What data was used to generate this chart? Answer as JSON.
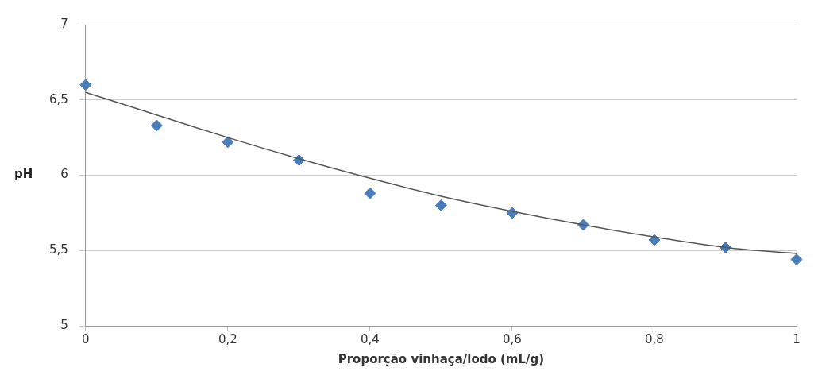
{
  "chart_data": {
    "type": "scatter",
    "xlabel": "Proporção vinhaça/lodo (mL/g)",
    "ylabel": "pH",
    "x": [
      0,
      0.1,
      0.2,
      0.3,
      0.4,
      0.5,
      0.6,
      0.7,
      0.8,
      0.9,
      1
    ],
    "series": [
      {
        "color": "#4a7ebb",
        "marker": "diamond",
        "values": [
          6.6,
          6.33,
          6.22,
          6.1,
          5.88,
          5.8,
          5.75,
          5.67,
          5.57,
          5.52,
          5.44
        ]
      },
      {
        "type": "line",
        "color": "#555555",
        "marker": "none",
        "x": [
          0,
          0.1,
          0.2,
          0.3,
          0.4,
          0.5,
          0.6,
          0.7,
          0.8,
          0.9,
          1
        ],
        "values": [
          6.55,
          6.4,
          6.25,
          6.11,
          5.98,
          5.86,
          5.76,
          5.67,
          5.59,
          5.52,
          5.48
        ]
      }
    ],
    "xlim": [
      0,
      1
    ],
    "xticks": [
      0,
      {
        "value": 0.2,
        "label": "0,2"
      },
      {
        "value": 0.4,
        "label": "0,4"
      },
      {
        "value": 0.6,
        "label": "0,6"
      },
      {
        "value": 0.8,
        "label": "0,8"
      },
      1
    ],
    "ylim": [
      5,
      7
    ],
    "yticks": [
      5,
      {
        "value": 5.5,
        "label": "5,5"
      },
      6,
      {
        "value": 6.5,
        "label": "6,5"
      },
      7
    ],
    "grid": "y",
    "legend": false
  }
}
